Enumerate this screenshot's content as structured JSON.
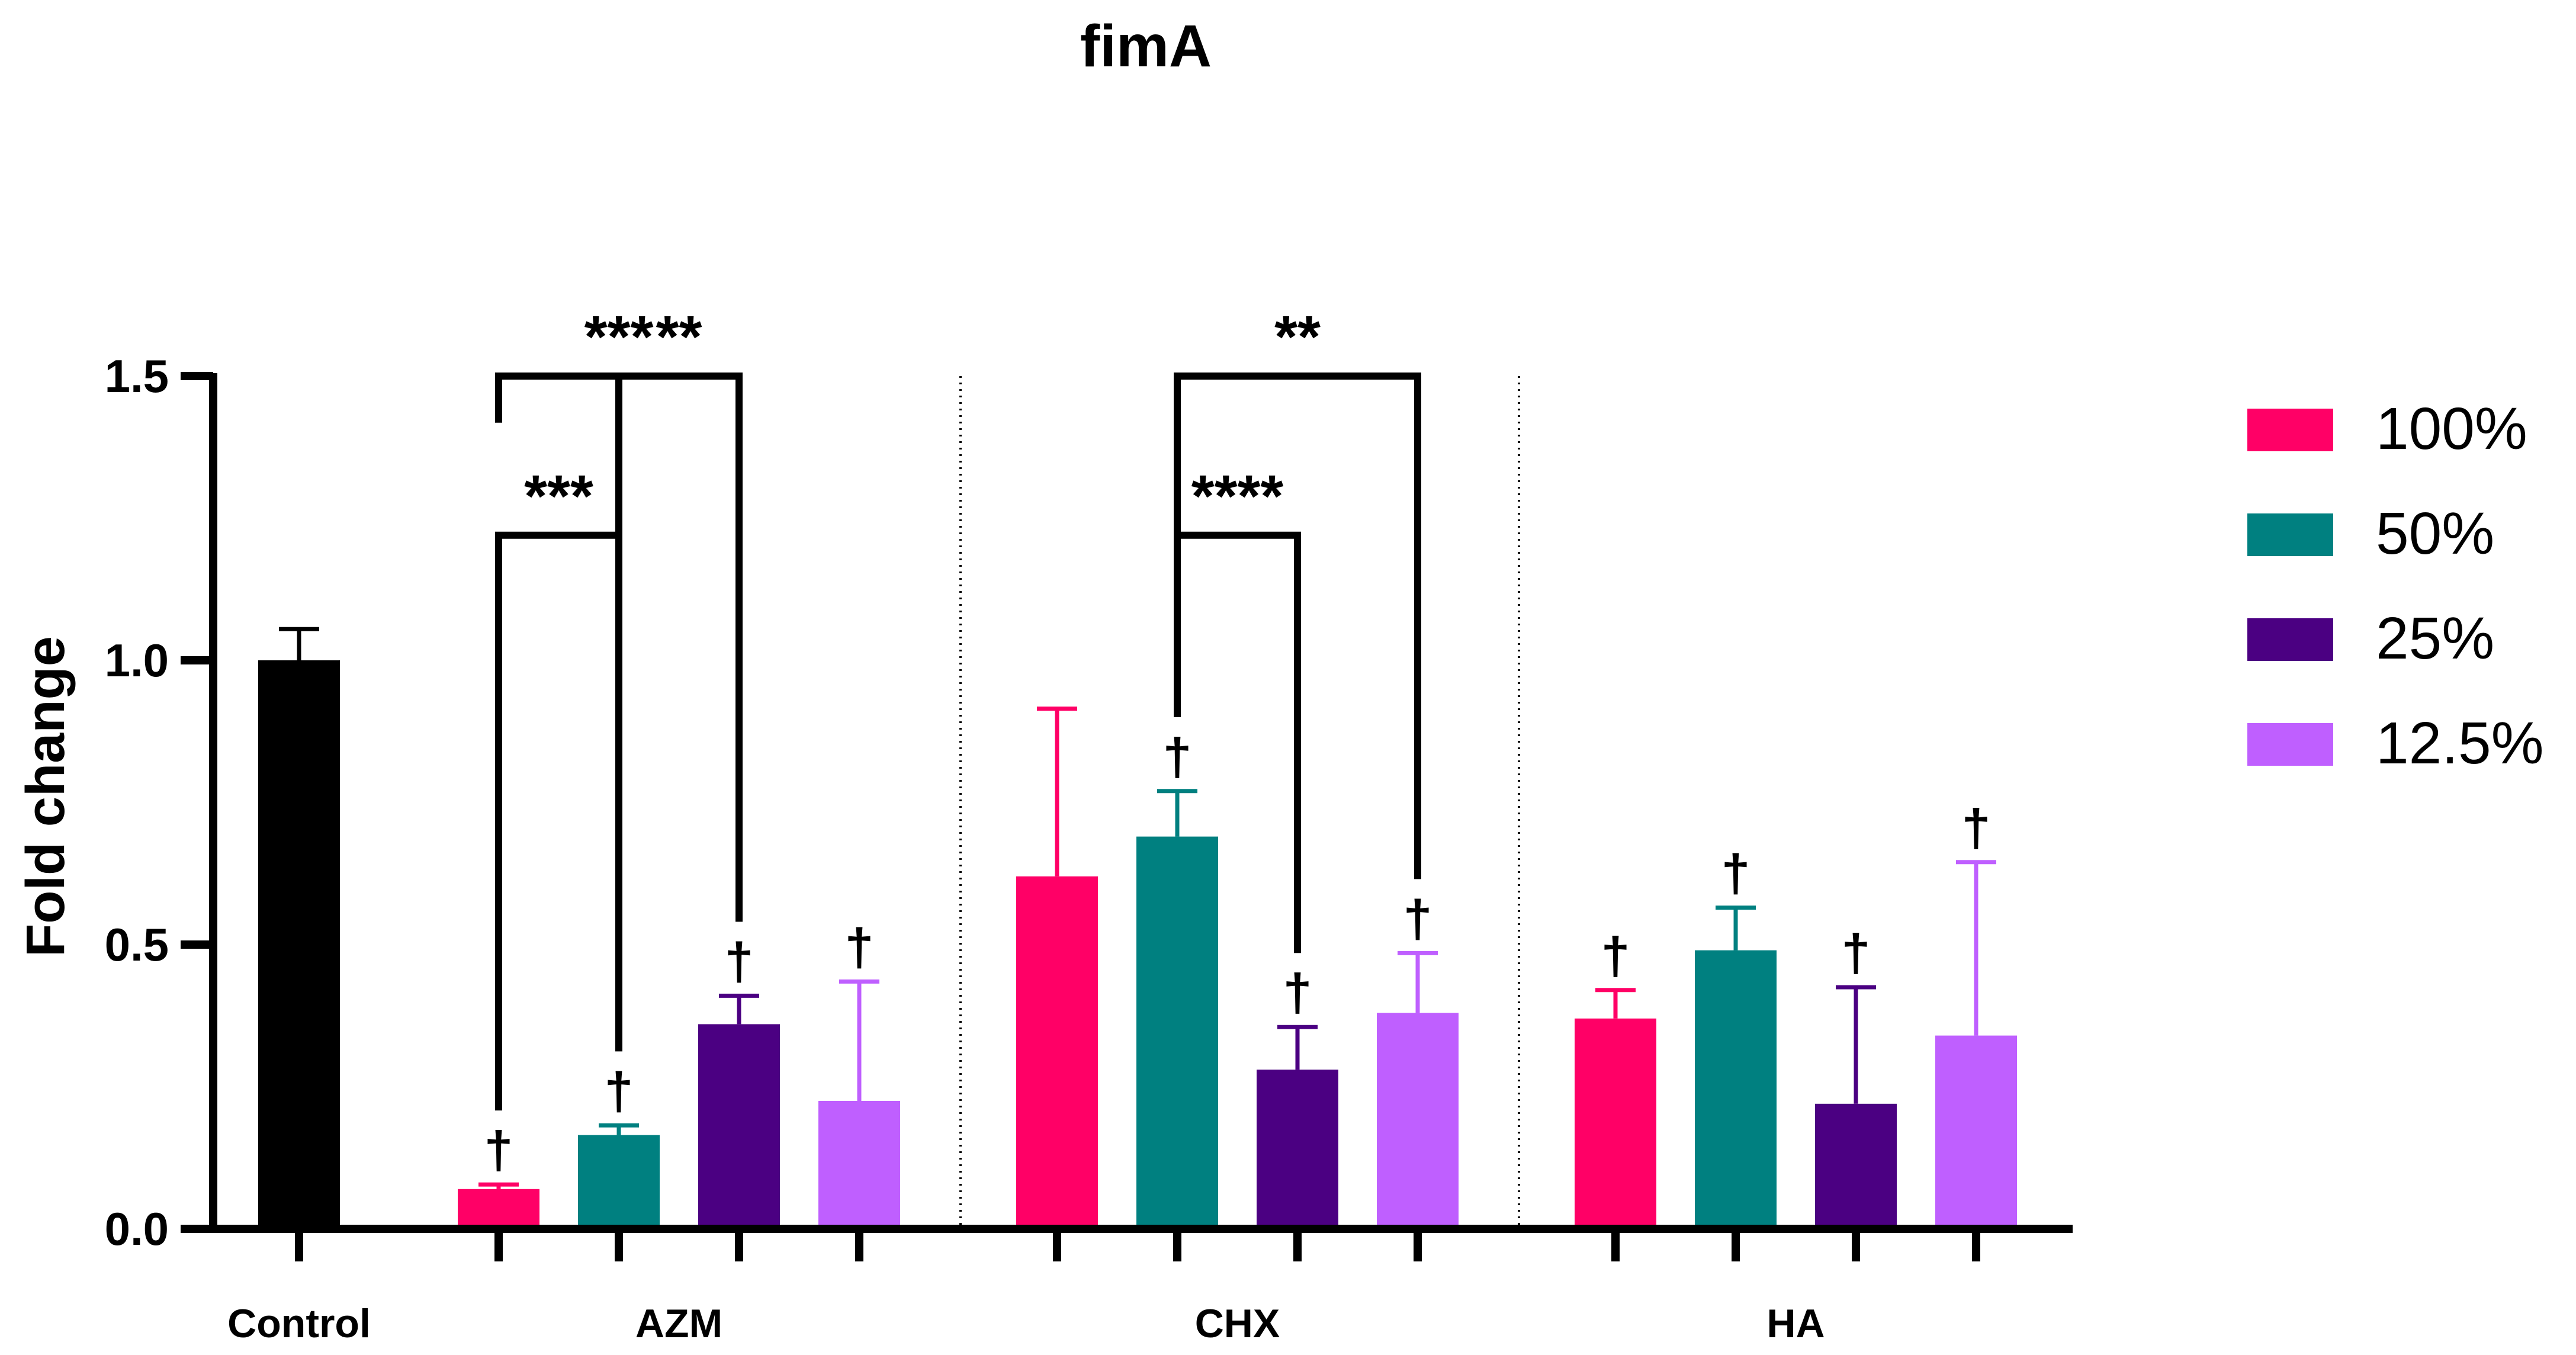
{
  "chart_data": {
    "type": "bar",
    "title": "fimA",
    "xlabel": "",
    "ylabel": "Fold change",
    "ylim": [
      0,
      1.5
    ],
    "yticks": [
      "0.0",
      "0.5",
      "1.0",
      "1.5"
    ],
    "grid": false,
    "legend_position": "right",
    "groups": [
      "Control",
      "AZM",
      "CHX",
      "HA"
    ],
    "series": [
      {
        "name": "100%",
        "color": "#ff0066"
      },
      {
        "name": "50%",
        "color": "#008080"
      },
      {
        "name": "25%",
        "color": "#4b0082"
      },
      {
        "name": "12.5%",
        "color": "#bf5fff"
      }
    ],
    "bars": [
      {
        "group": "Control",
        "series": null,
        "color": "#000000",
        "value": 1.0,
        "error": 0.055,
        "dagger": false
      },
      {
        "group": "AZM",
        "series": "100%",
        "value": 0.07,
        "error": 0.008,
        "dagger": true
      },
      {
        "group": "AZM",
        "series": "50%",
        "value": 0.165,
        "error": 0.017,
        "dagger": true
      },
      {
        "group": "AZM",
        "series": "25%",
        "value": 0.36,
        "error": 0.05,
        "dagger": true
      },
      {
        "group": "AZM",
        "series": "12.5%",
        "value": 0.225,
        "error": 0.21,
        "dagger": true
      },
      {
        "group": "CHX",
        "series": "100%",
        "value": 0.62,
        "error": 0.295,
        "dagger": false
      },
      {
        "group": "CHX",
        "series": "50%",
        "value": 0.69,
        "error": 0.08,
        "dagger": true
      },
      {
        "group": "CHX",
        "series": "25%",
        "value": 0.28,
        "error": 0.075,
        "dagger": true
      },
      {
        "group": "CHX",
        "series": "12.5%",
        "value": 0.38,
        "error": 0.105,
        "dagger": true
      },
      {
        "group": "HA",
        "series": "100%",
        "value": 0.37,
        "error": 0.05,
        "dagger": true
      },
      {
        "group": "HA",
        "series": "50%",
        "value": 0.49,
        "error": 0.075,
        "dagger": true
      },
      {
        "group": "HA",
        "series": "25%",
        "value": 0.22,
        "error": 0.205,
        "dagger": true
      },
      {
        "group": "HA",
        "series": "12.5%",
        "value": 0.34,
        "error": 0.305,
        "dagger": true
      }
    ],
    "dagger_symbol": "†",
    "significance": [
      {
        "from": 1,
        "to": 3,
        "level": 1.5,
        "label": "***"
      },
      {
        "from": 2,
        "to": 3,
        "level": 1.5,
        "label": "**"
      },
      {
        "from": 1,
        "to": 2,
        "level": 1.22,
        "label": "***"
      },
      {
        "from": 6,
        "to": 8,
        "level": 1.5,
        "label": "**"
      },
      {
        "from": 6,
        "to": 7,
        "level": 1.22,
        "label": "****"
      }
    ]
  }
}
